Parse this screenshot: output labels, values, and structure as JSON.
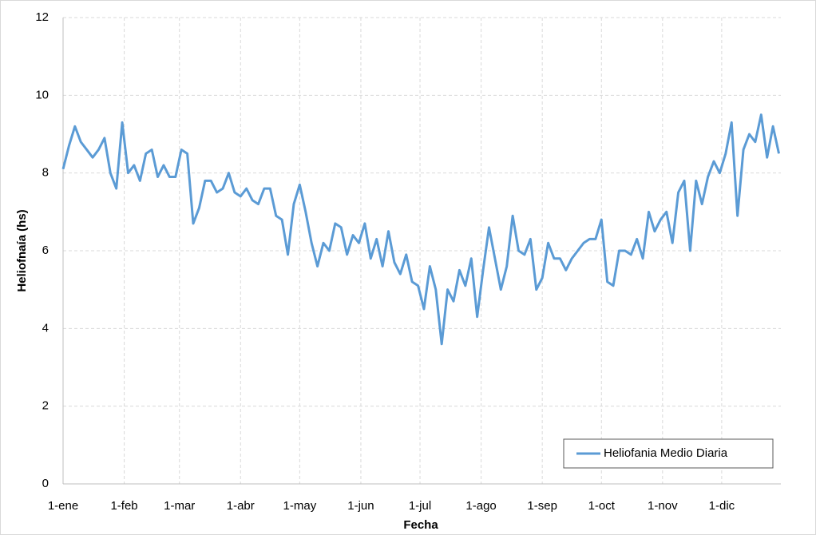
{
  "chart_data": {
    "type": "line",
    "x_label": "Fecha",
    "y_label": "Heliofnaía (hs)",
    "x": [
      0,
      3,
      6,
      9,
      12,
      15,
      18,
      21,
      24,
      27,
      30,
      33,
      36,
      39,
      42,
      45,
      48,
      51,
      54,
      57,
      60,
      63,
      66,
      69,
      72,
      75,
      78,
      81,
      84,
      87,
      90,
      93,
      96,
      99,
      102,
      105,
      108,
      111,
      114,
      117,
      120,
      123,
      126,
      129,
      132,
      135,
      138,
      141,
      144,
      147,
      150,
      153,
      156,
      159,
      162,
      165,
      168,
      171,
      174,
      177,
      180,
      183,
      186,
      189,
      192,
      195,
      198,
      201,
      204,
      207,
      210,
      213,
      216,
      219,
      222,
      225,
      228,
      231,
      234,
      237,
      240,
      243,
      246,
      249,
      252,
      255,
      258,
      261,
      264,
      267,
      270,
      273,
      276,
      279,
      282,
      285,
      288,
      291,
      294,
      297,
      300,
      303,
      306,
      309,
      312,
      315,
      318,
      321,
      324,
      327,
      330,
      333,
      336,
      339,
      342,
      345,
      348,
      351,
      354,
      357,
      360,
      363
    ],
    "series": [
      {
        "name": "Heliofania Medio Diaria",
        "color": "#5b9bd5",
        "values": [
          8.1,
          8.7,
          9.2,
          8.8,
          8.6,
          8.4,
          8.6,
          8.9,
          8.0,
          7.6,
          9.3,
          8.0,
          8.2,
          7.8,
          8.5,
          8.6,
          7.9,
          8.2,
          7.9,
          7.9,
          8.6,
          8.5,
          6.7,
          7.1,
          7.8,
          7.8,
          7.5,
          7.6,
          8.0,
          7.5,
          7.4,
          7.6,
          7.3,
          7.2,
          7.6,
          7.6,
          6.9,
          6.8,
          5.9,
          7.2,
          7.7,
          7.0,
          6.2,
          5.6,
          6.2,
          6.0,
          6.7,
          6.6,
          5.9,
          6.4,
          6.2,
          6.7,
          5.8,
          6.3,
          5.6,
          6.5,
          5.7,
          5.4,
          5.9,
          5.2,
          5.1,
          4.5,
          5.6,
          5.0,
          3.6,
          5.0,
          4.7,
          5.5,
          5.1,
          5.8,
          4.3,
          5.5,
          6.6,
          5.8,
          5.0,
          5.6,
          6.9,
          6.0,
          5.9,
          6.3,
          5.0,
          5.3,
          6.2,
          5.8,
          5.8,
          5.5,
          5.8,
          6.0,
          6.2,
          6.3,
          6.3,
          6.8,
          5.2,
          5.1,
          6.0,
          6.0,
          5.9,
          6.3,
          5.8,
          7.0,
          6.5,
          6.8,
          7.0,
          6.2,
          7.5,
          7.8,
          6.0,
          7.8,
          7.2,
          7.9,
          8.3,
          8.0,
          8.5,
          9.3,
          6.9,
          8.6,
          9.0,
          8.8,
          9.5,
          8.4,
          9.2,
          8.5
        ]
      }
    ],
    "xlim": [
      0,
      364
    ],
    "xticks": [
      {
        "value": 0,
        "label": "1-ene"
      },
      {
        "value": 31,
        "label": "1-feb"
      },
      {
        "value": 59,
        "label": "1-mar"
      },
      {
        "value": 90,
        "label": "1-abr"
      },
      {
        "value": 120,
        "label": "1-may"
      },
      {
        "value": 151,
        "label": "1-jun"
      },
      {
        "value": 181,
        "label": "1-jul"
      },
      {
        "value": 212,
        "label": "1-ago"
      },
      {
        "value": 243,
        "label": "1-sep"
      },
      {
        "value": 273,
        "label": "1-oct"
      },
      {
        "value": 304,
        "label": "1-nov"
      },
      {
        "value": 334,
        "label": "1-dic"
      }
    ],
    "ylim": [
      0,
      12
    ],
    "yticks": [
      0,
      2,
      4,
      6,
      8,
      10,
      12
    ],
    "grid": true,
    "legend": "bottom-right"
  }
}
